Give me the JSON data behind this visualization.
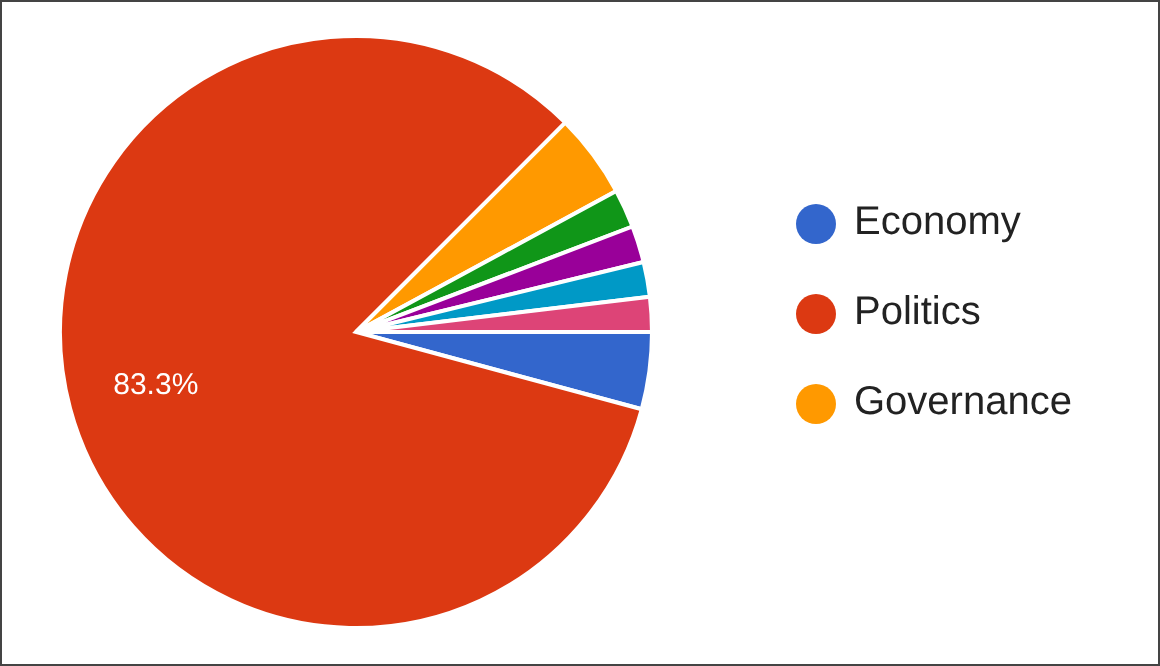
{
  "chart_data": {
    "type": "pie",
    "categories": [
      "Economy",
      "Politics",
      "Governance",
      null,
      null,
      null,
      null
    ],
    "values": [
      4.2,
      83.3,
      4.6,
      2.1,
      2.0,
      1.9,
      1.9
    ],
    "colors": [
      "#3366cc",
      "#dc3912",
      "#ff9900",
      "#109618",
      "#990099",
      "#0099c6",
      "#dd4477"
    ],
    "value_labels": [
      null,
      "83.3%",
      null,
      null,
      null,
      null,
      null
    ],
    "legend": "right"
  }
}
